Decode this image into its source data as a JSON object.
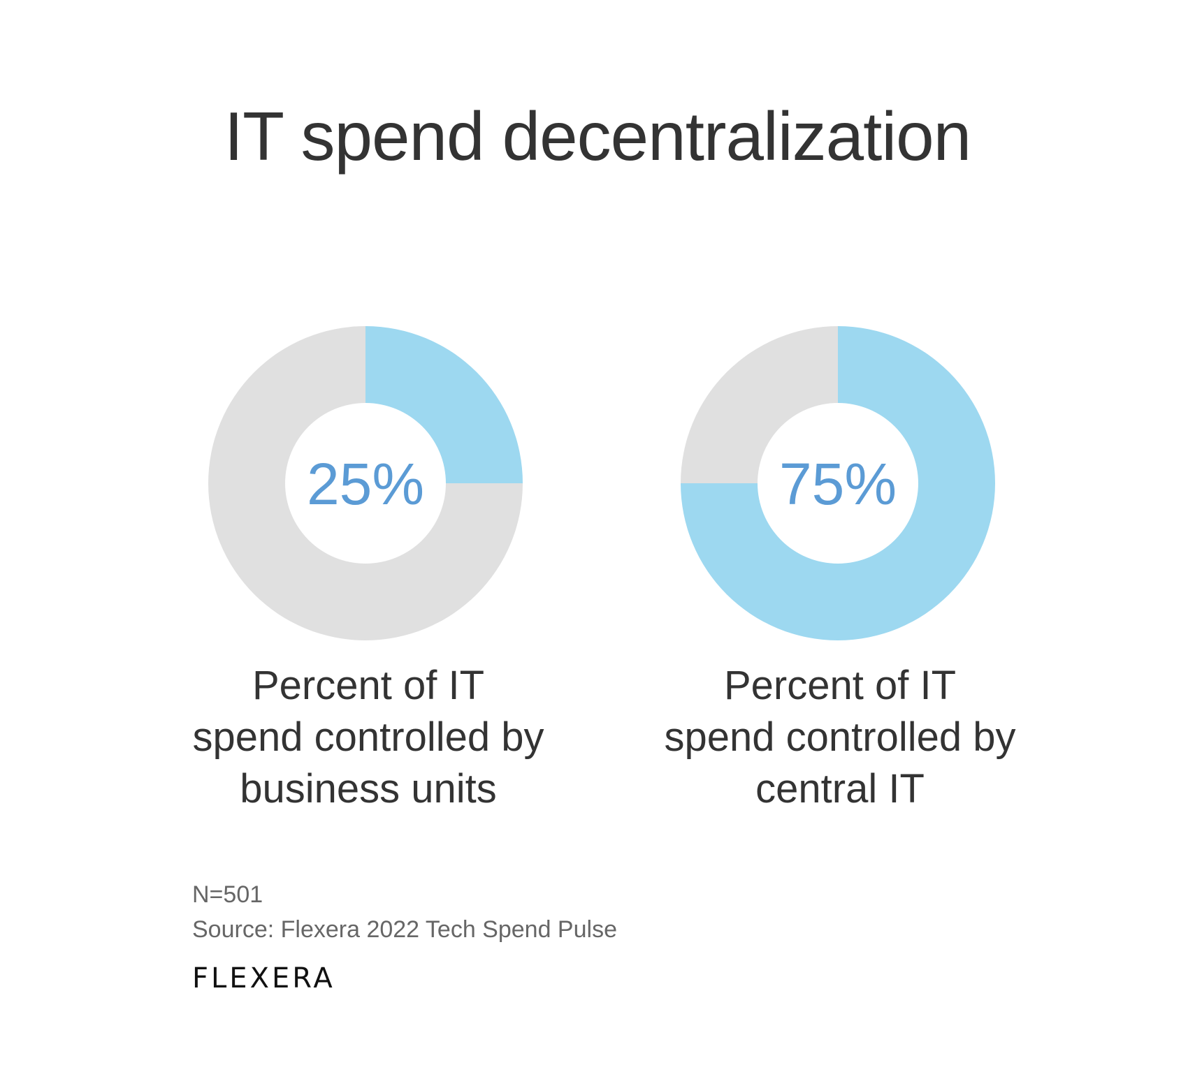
{
  "chart_data": [
    {
      "type": "pie",
      "variant": "donut",
      "title": "IT spend decentralization",
      "center_label": "25%",
      "value": 25,
      "label_lines": [
        "Percent of IT",
        "spend controlled by",
        "business units"
      ],
      "colors": {
        "highlight": "#9dd8f0",
        "rest": "#e0e0e0",
        "center_text": "#5b9bd5"
      }
    },
    {
      "type": "pie",
      "variant": "donut",
      "center_label": "75%",
      "value": 75,
      "label_lines": [
        "Percent of IT",
        "spend controlled by",
        "central IT"
      ],
      "colors": {
        "highlight": "#9dd8f0",
        "rest": "#e0e0e0",
        "center_text": "#5b9bd5"
      }
    }
  ],
  "footer": {
    "n": "N=501",
    "source": "Source: Flexera 2022 Tech Spend Pulse",
    "logo": "FLEXERA"
  }
}
